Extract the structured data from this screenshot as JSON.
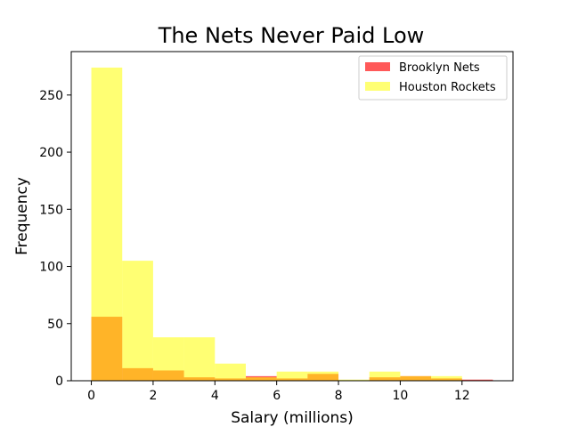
{
  "chart_data": {
    "type": "bar",
    "title": "The Nets Never Paid Low",
    "xlabel": "Salary (millions)",
    "ylabel": "Frequency",
    "xlim": [
      -0.65,
      13.65
    ],
    "ylim": [
      0,
      288
    ],
    "xticks": [
      0,
      2,
      4,
      6,
      8,
      10,
      12
    ],
    "yticks": [
      0,
      50,
      100,
      150,
      200,
      250
    ],
    "grid": false,
    "legend_position": "top-right",
    "series": [
      {
        "name": "Brooklyn Nets",
        "color": "#ff0000",
        "alpha": 0.65,
        "bins": [
          {
            "x0": 0,
            "x1": 1,
            "count": 56
          },
          {
            "x0": 1,
            "x1": 2,
            "count": 11
          },
          {
            "x0": 2,
            "x1": 3,
            "count": 9
          },
          {
            "x0": 3,
            "x1": 4,
            "count": 3
          },
          {
            "x0": 4,
            "x1": 5,
            "count": 2
          },
          {
            "x0": 5,
            "x1": 6,
            "count": 4
          },
          {
            "x0": 6,
            "x1": 7,
            "count": 2
          },
          {
            "x0": 7,
            "x1": 8,
            "count": 6
          },
          {
            "x0": 8,
            "x1": 9,
            "count": 0
          },
          {
            "x0": 9,
            "x1": 10,
            "count": 3
          },
          {
            "x0": 10,
            "x1": 11,
            "count": 4
          },
          {
            "x0": 11,
            "x1": 12,
            "count": 2
          },
          {
            "x0": 12,
            "x1": 13,
            "count": 1
          }
        ]
      },
      {
        "name": "Houston Rockets",
        "color": "#ffff00",
        "alpha": 0.55,
        "bins": [
          {
            "x0": 0,
            "x1": 1,
            "count": 274
          },
          {
            "x0": 1,
            "x1": 2,
            "count": 105
          },
          {
            "x0": 2,
            "x1": 3,
            "count": 38
          },
          {
            "x0": 3,
            "x1": 4,
            "count": 38
          },
          {
            "x0": 4,
            "x1": 5,
            "count": 15
          },
          {
            "x0": 5,
            "x1": 6,
            "count": 3
          },
          {
            "x0": 6,
            "x1": 7,
            "count": 8
          },
          {
            "x0": 7,
            "x1": 8,
            "count": 8
          },
          {
            "x0": 8,
            "x1": 9,
            "count": 1
          },
          {
            "x0": 9,
            "x1": 10,
            "count": 8
          },
          {
            "x0": 10,
            "x1": 11,
            "count": 4
          },
          {
            "x0": 11,
            "x1": 12,
            "count": 4
          }
        ]
      }
    ]
  }
}
